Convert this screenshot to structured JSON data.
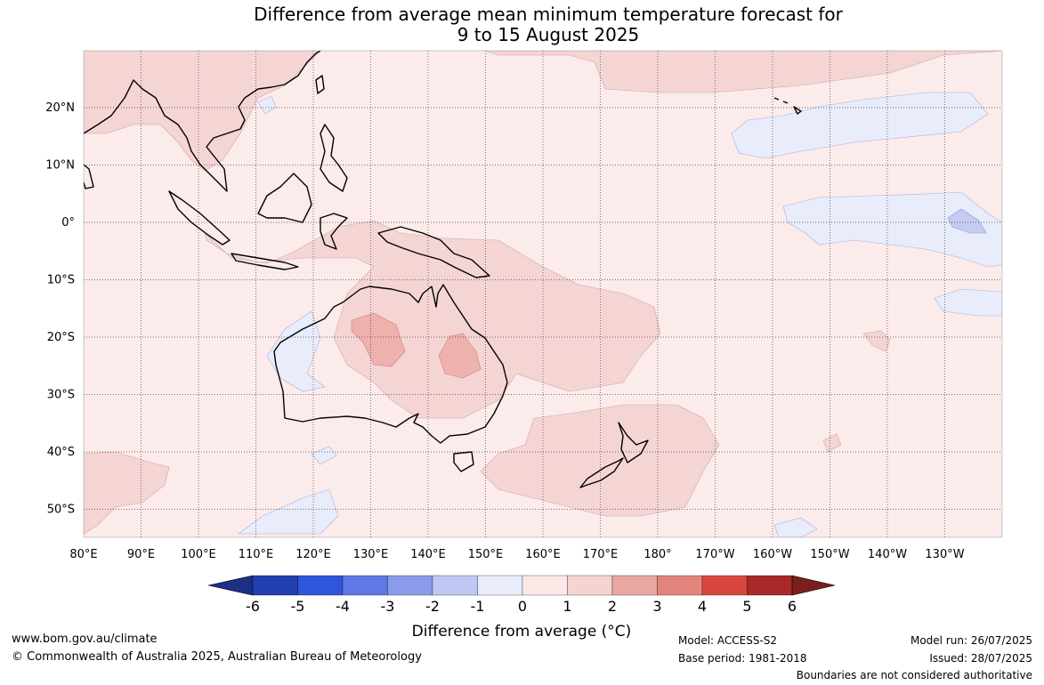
{
  "title_line1": "Difference from average mean minimum temperature forecast for",
  "title_line2": "9 to 15 August 2025",
  "lon_labels": [
    "80°E",
    "90°E",
    "100°E",
    "110°E",
    "120°E",
    "130°E",
    "140°E",
    "150°E",
    "160°E",
    "170°E",
    "180°",
    "170°W",
    "160°W",
    "150°W",
    "140°W",
    "130°W"
  ],
  "lat_labels": [
    "20°N",
    "10°N",
    "0°",
    "10°S",
    "20°S",
    "30°S",
    "40°S",
    "50°S"
  ],
  "colorbar": {
    "title": "Difference from average (°C)",
    "tick_labels": [
      "-6",
      "-5",
      "-4",
      "-3",
      "-2",
      "-1",
      "0",
      "1",
      "2",
      "3",
      "4",
      "5",
      "6"
    ],
    "colors": [
      "#1e2f88",
      "#233fb0",
      "#2f55dd",
      "#5f78e6",
      "#8a9ce9",
      "#bfc8f2",
      "#e8ecfb",
      "#fbe9e8",
      "#f4d3d1",
      "#eaa7a2",
      "#e3847c",
      "#d8473d",
      "#a9282a",
      "#7a1f1c"
    ]
  },
  "footer": {
    "website": "www.bom.gov.au/climate",
    "copyright": "© Commonwealth of Australia 2025, Australian Bureau of Meteorology",
    "model": "Model: ACCESS-S2",
    "base_period": "Base period: 1981-2018",
    "model_run": "Model run: 26/07/2025",
    "issued": "Issued: 28/07/2025",
    "disclaimer": "Boundaries are not considered authoritative"
  }
}
